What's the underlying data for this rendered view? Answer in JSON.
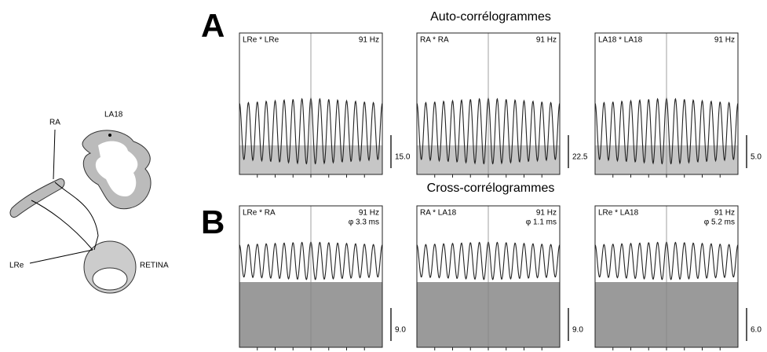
{
  "diagram": {
    "labels": [
      "RA",
      "LA18",
      "LRe",
      "RETINA"
    ]
  },
  "panels": [
    {
      "letter": "A",
      "heading": "Auto-corrélogrammes",
      "plots": [
        {
          "pair": "LRe * LRe",
          "freq": "91 Hz",
          "scale": "15.0"
        },
        {
          "pair": "RA * RA",
          "freq": "91 Hz",
          "scale": "22.5"
        },
        {
          "pair": "LA18 * LA18",
          "freq": "91 Hz",
          "scale": "5.0"
        }
      ]
    },
    {
      "letter": "B",
      "heading": "Cross-corrélogrammes",
      "plots": [
        {
          "pair": "LRe * RA",
          "freq": "91 Hz",
          "phase": "φ 3.3 ms",
          "scale": "9.0"
        },
        {
          "pair": "RA * LA18",
          "freq": "91 Hz",
          "phase": "φ 1.1 ms",
          "scale": "9.0"
        },
        {
          "pair": "LRe * LA18",
          "freq": "91 Hz",
          "phase": "φ 5.2 ms",
          "scale": "6.0"
        }
      ]
    }
  ]
}
